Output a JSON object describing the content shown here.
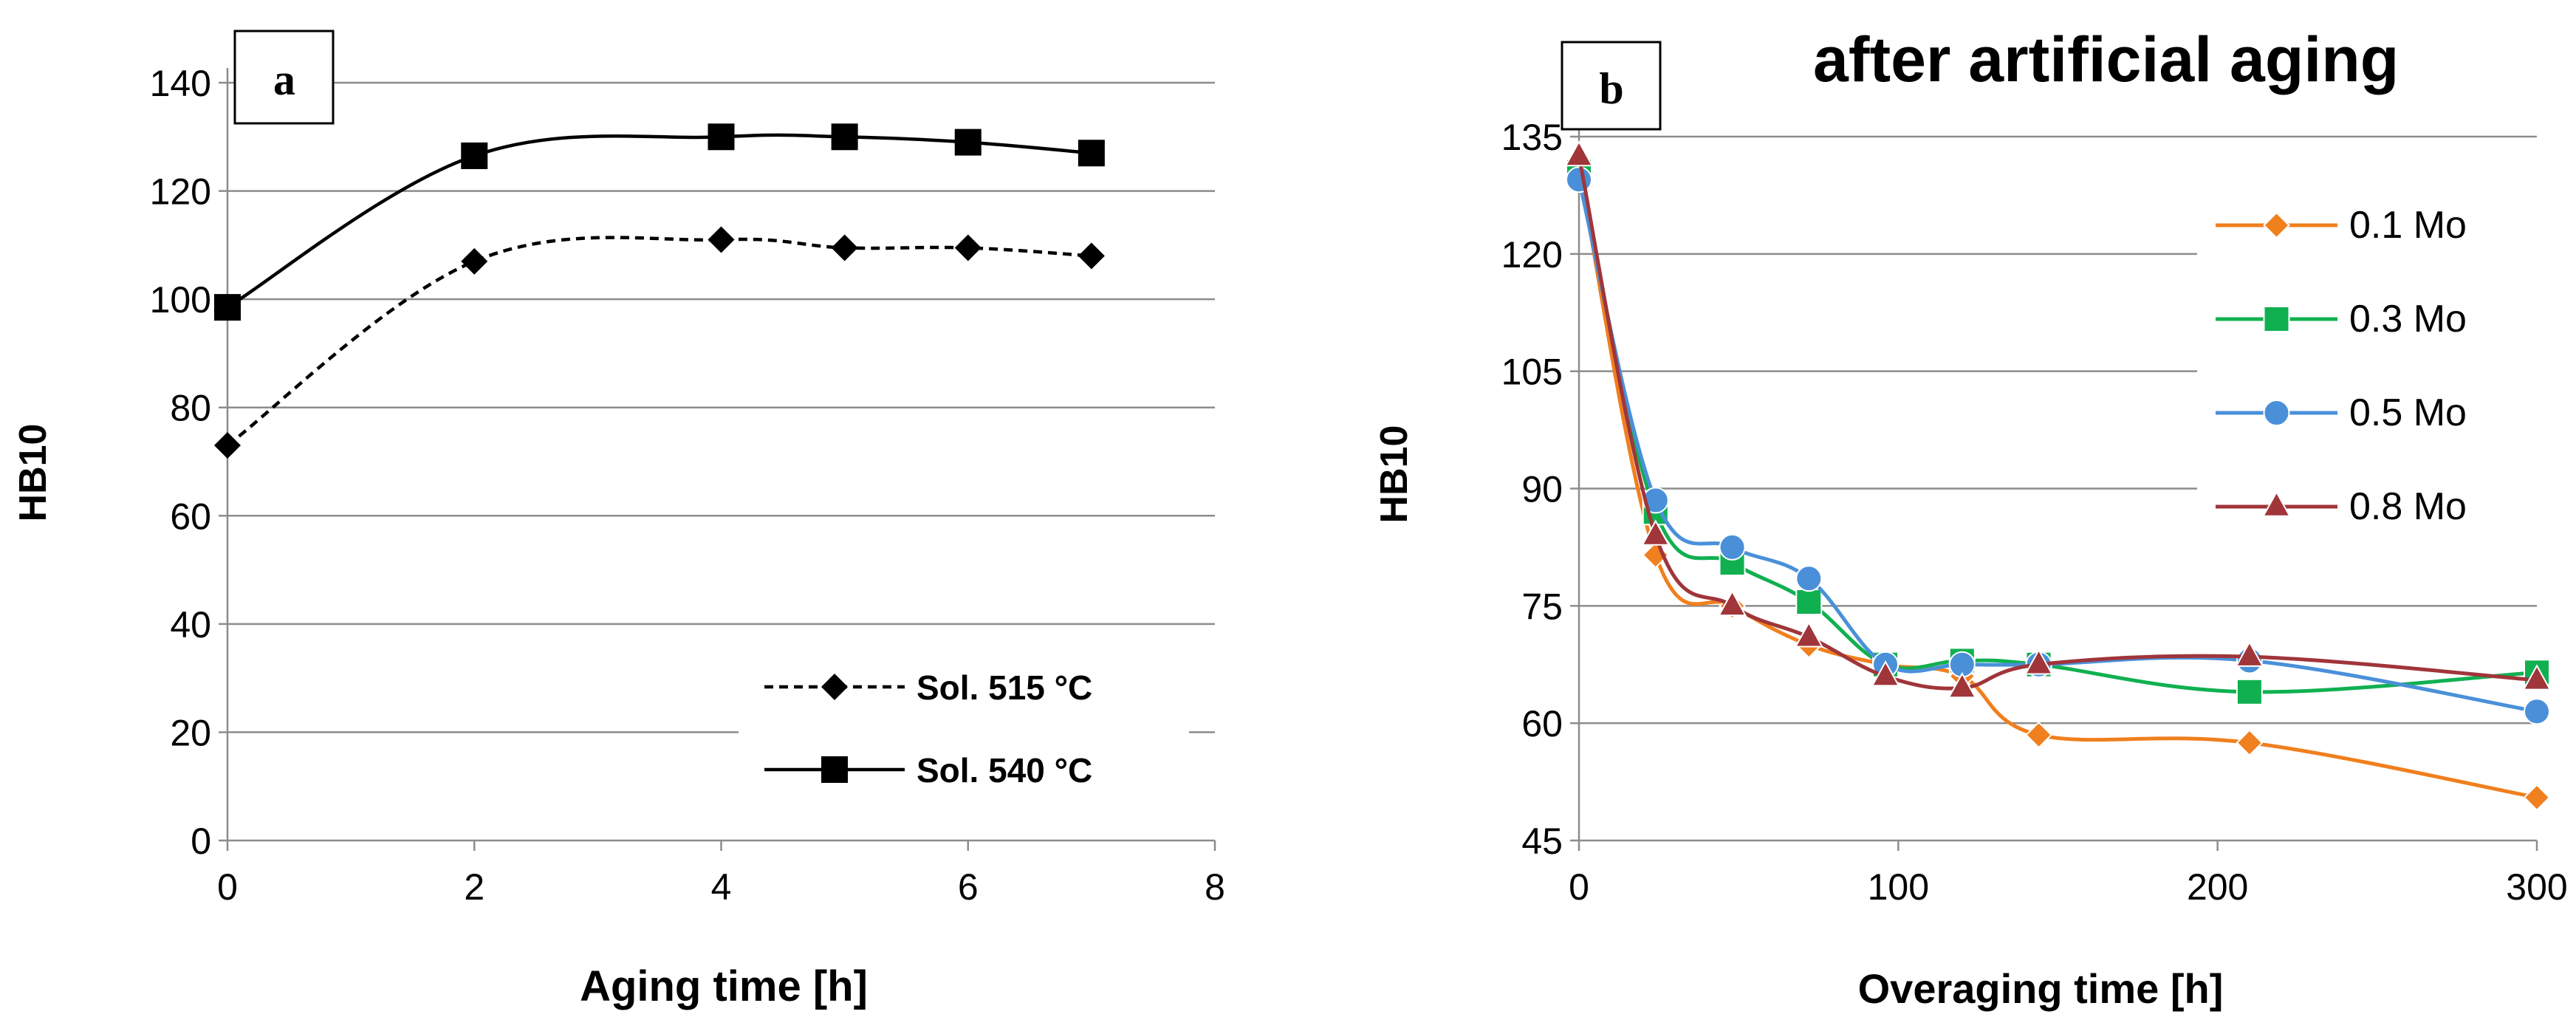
{
  "chart_data": [
    {
      "type": "line",
      "panel_label": "a",
      "title": "",
      "xlabel": "Aging time [h]",
      "ylabel": "HB10",
      "xlim": [
        0,
        8
      ],
      "ylim": [
        0,
        140
      ],
      "x_ticks": [
        "0",
        "2",
        "4",
        "6",
        "8"
      ],
      "y_ticks": [
        "0",
        "20",
        "40",
        "60",
        "80",
        "100",
        "120",
        "140"
      ],
      "grid": "horizontal",
      "legend_position": "bottom-right",
      "series": [
        {
          "name": "Sol. 515 °C",
          "marker": "diamond",
          "line_style": "dashed",
          "color": "#000000",
          "x": [
            0,
            2,
            4,
            5,
            6,
            7
          ],
          "values": [
            73,
            107,
            111,
            109.5,
            109.5,
            108
          ]
        },
        {
          "name": "Sol. 540 °C",
          "marker": "square",
          "line_style": "solid",
          "color": "#000000",
          "x": [
            0,
            2,
            4,
            5,
            6,
            7
          ],
          "values": [
            98.5,
            126.5,
            130,
            130,
            129,
            127
          ]
        }
      ]
    },
    {
      "type": "line",
      "panel_label": "b",
      "title": "after artificial aging",
      "xlabel": "Overaging time [h]",
      "ylabel": "HB10",
      "xlim": [
        0,
        300
      ],
      "ylim": [
        45,
        135
      ],
      "x_ticks": [
        "0",
        "100",
        "200",
        "300"
      ],
      "y_ticks": [
        "45",
        "60",
        "75",
        "90",
        "105",
        "120",
        "135"
      ],
      "grid": "horizontal",
      "legend_position": "top-right",
      "series": [
        {
          "name": "0.1 Mo",
          "marker": "diamond",
          "color": "#f07f1d",
          "x": [
            0,
            24,
            48,
            72,
            96,
            120,
            144,
            210,
            300
          ],
          "values": [
            131,
            81.5,
            75,
            70,
            67.5,
            66,
            58.5,
            57.5,
            50.5
          ]
        },
        {
          "name": "0.3 Mo",
          "marker": "square",
          "color": "#10b050",
          "x": [
            0,
            24,
            48,
            72,
            96,
            120,
            144,
            210,
            300
          ],
          "values": [
            130.5,
            87,
            80.5,
            75.5,
            67.5,
            68,
            67.5,
            64,
            66.5
          ]
        },
        {
          "name": "0.5 Mo",
          "marker": "circle",
          "color": "#4a90d9",
          "x": [
            0,
            24,
            48,
            72,
            96,
            120,
            144,
            210,
            300
          ],
          "values": [
            129.5,
            88.5,
            82.5,
            78.5,
            67.5,
            67.5,
            67.5,
            68,
            61.5
          ]
        },
        {
          "name": "0.8 Mo",
          "marker": "triangle",
          "color": "#a0353a",
          "x": [
            0,
            24,
            48,
            72,
            96,
            120,
            144,
            210,
            300
          ],
          "values": [
            132.5,
            84,
            75,
            71,
            66,
            64.5,
            67.5,
            68.5,
            65.5
          ]
        }
      ]
    }
  ]
}
